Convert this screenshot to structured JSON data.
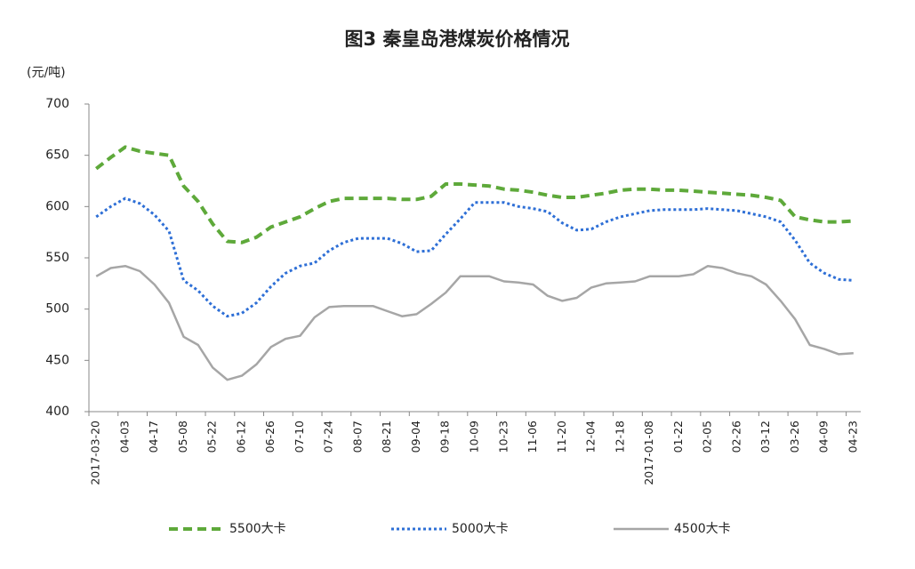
{
  "chart_data": {
    "type": "line",
    "title": "图3 秦皇岛港煤炭价格情况",
    "y_label": "(元/吨)",
    "categories": [
      "2017-03-20",
      null,
      "04-03",
      null,
      "04-17",
      null,
      "05-08",
      null,
      "05-22",
      null,
      "06-12",
      null,
      "06-26",
      null,
      "07-10",
      null,
      "07-24",
      null,
      "08-07",
      null,
      "08-21",
      null,
      "09-04",
      null,
      "09-18",
      null,
      "10-09",
      null,
      "10-23",
      null,
      "11-06",
      null,
      "11-20",
      null,
      "12-04",
      null,
      "12-18",
      null,
      "2017-01-08",
      null,
      "01-22",
      null,
      "02-05",
      null,
      "02-26",
      null,
      "03-12",
      null,
      "03-26",
      null,
      "04-09",
      null,
      "04-23"
    ],
    "series": [
      {
        "name": "5500大卡",
        "color": "#5ea93a",
        "line_style": "dashed",
        "values": [
          637,
          648,
          658,
          654,
          652,
          650,
          620,
          605,
          583,
          566,
          565,
          570,
          580,
          585,
          590,
          598,
          605,
          608,
          608,
          608,
          608,
          607,
          607,
          610,
          622,
          622,
          621,
          620,
          617,
          616,
          614,
          611,
          609,
          609,
          611,
          613,
          616,
          617,
          617,
          616,
          616,
          615,
          614,
          613,
          612,
          611,
          609,
          606,
          590,
          587,
          585,
          585,
          586
        ]
      },
      {
        "name": "5000大卡",
        "color": "#2e6fd6",
        "line_style": "dotted",
        "values": [
          590,
          600,
          608,
          603,
          592,
          576,
          528,
          518,
          503,
          493,
          496,
          506,
          522,
          535,
          542,
          545,
          557,
          565,
          569,
          569,
          569,
          564,
          556,
          557,
          573,
          588,
          604,
          604,
          604,
          600,
          598,
          595,
          584,
          577,
          578,
          585,
          590,
          593,
          596,
          597,
          597,
          597,
          598,
          597,
          596,
          593,
          590,
          585,
          567,
          545,
          535,
          529,
          528
        ]
      },
      {
        "name": "4500大卡",
        "color": "#a6a6a6",
        "line_style": "solid",
        "values": [
          532,
          540,
          542,
          537,
          524,
          506,
          473,
          465,
          443,
          431,
          435,
          446,
          463,
          471,
          474,
          492,
          502,
          503,
          503,
          503,
          498,
          493,
          495,
          505,
          516,
          532,
          532,
          532,
          527,
          526,
          524,
          513,
          508,
          511,
          521,
          525,
          526,
          527,
          532,
          532,
          532,
          534,
          542,
          540,
          535,
          532,
          524,
          508,
          490,
          465,
          461,
          456,
          457
        ]
      }
    ],
    "ylim": [
      400,
      700
    ],
    "yticks": [
      400,
      450,
      500,
      550,
      600,
      650,
      700
    ],
    "grid": false,
    "legend": "bottom"
  }
}
